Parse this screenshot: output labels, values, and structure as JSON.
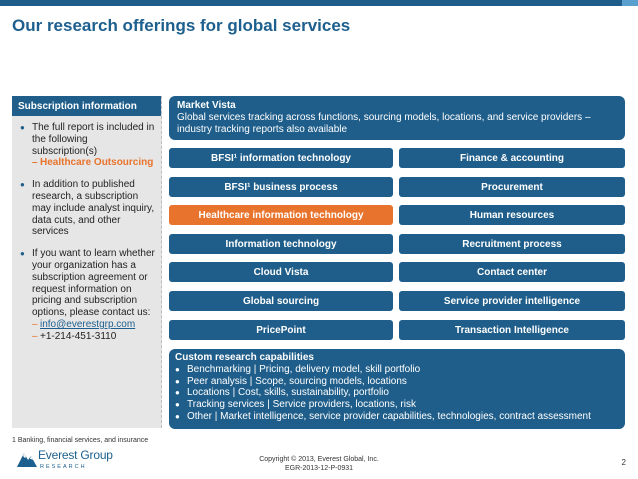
{
  "title": "Our research offerings for global services",
  "subscription": {
    "header": "Subscription information",
    "items": [
      {
        "text": "The full report is included in the following subscription(s)",
        "subs": [
          "Healthcare Outsourcing"
        ]
      },
      {
        "text": "In addition to published research, a subscription may include analyst inquiry, data cuts, and other services",
        "subs": []
      },
      {
        "text": "If you want to learn whether your organization has a subscription agreement or request information on pricing and subscription options, please contact us:",
        "subs": [
          "info@everestgrp.com",
          "+1-214-451-3110"
        ]
      }
    ]
  },
  "market_vista": {
    "title": "Market Vista",
    "desc": "Global services tracking across functions, sourcing models, locations, and service providers – industry tracking reports also available"
  },
  "offerings_left": [
    "BFSI¹ information technology",
    "BFSI¹ business process",
    "Healthcare information technology",
    "Information technology",
    "Cloud Vista",
    "Global sourcing",
    "PricePoint"
  ],
  "offerings_right": [
    "Finance & accounting",
    "Procurement",
    "Human resources",
    "Recruitment process",
    "Contact center",
    "Service provider intelligence",
    "Transaction Intelligence"
  ],
  "custom": {
    "title": "Custom research capabilities",
    "items": [
      "Benchmarking | Pricing, delivery model, skill portfolio",
      "Peer analysis | Scope, sourcing models, locations",
      "Locations | Cost, skills, sustainability, portfolio",
      "Tracking services | Service providers, locations, risk",
      "Other | Market intelligence, service provider capabilities, technologies, contract assessment"
    ]
  },
  "footnote": "1    Banking, financial services, and insurance",
  "logo": {
    "name": "Everest Group",
    "sub": "RESEARCH"
  },
  "copyright": [
    "Copyright © 2013, Everest Global, Inc.",
    "EGR-2013-12-P-0931"
  ],
  "page_number": "2",
  "colors": {
    "primary": "#1f5e8a",
    "accent": "#e8732c",
    "panel": "#e6e6e6"
  }
}
